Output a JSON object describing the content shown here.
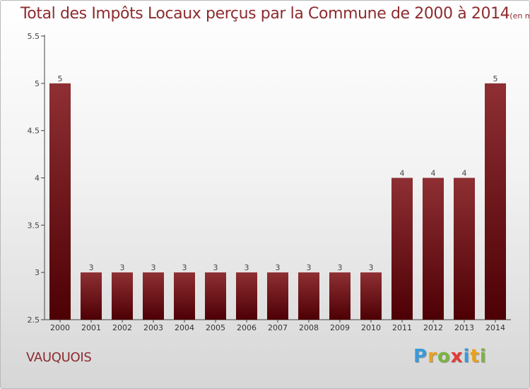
{
  "title": "Total des Impôts Locaux perçus par la Commune de 2000 à 2014",
  "unit": "(en milliers d'€)",
  "commune": "VAUQUOIS",
  "logo": {
    "letters": [
      {
        "char": "P",
        "color": "#3a9ad9"
      },
      {
        "char": "r",
        "color": "#e8a21c"
      },
      {
        "char": "o",
        "color": "#7cb342"
      },
      {
        "char": "x",
        "color": "#e53935"
      },
      {
        "char": "i",
        "color": "#3a9ad9"
      },
      {
        "char": "t",
        "color": "#e8a21c"
      },
      {
        "char": "i",
        "color": "#7cb342"
      }
    ]
  },
  "chart_data": {
    "type": "bar",
    "title": "Total des Impôts Locaux perçus par la Commune de 2000 à 2014",
    "categories": [
      "2000",
      "2001",
      "2002",
      "2003",
      "2004",
      "2005",
      "2006",
      "2007",
      "2008",
      "2009",
      "2010",
      "2011",
      "2012",
      "2013",
      "2014"
    ],
    "values": [
      5,
      3,
      3,
      3,
      3,
      3,
      3,
      3,
      3,
      3,
      3,
      4,
      4,
      4,
      5
    ],
    "data_labels": [
      "5",
      "3",
      "3",
      "3",
      "3",
      "3",
      "3",
      "3",
      "3",
      "3",
      "3",
      "4",
      "4",
      "4",
      "5"
    ],
    "yticks": [
      "2.5",
      "3",
      "3.5",
      "4",
      "4.5",
      "5",
      "5.5"
    ],
    "ylim": [
      2.5,
      5.5
    ],
    "xlabel": "",
    "ylabel": "",
    "grid": false,
    "legend": "none",
    "bar_color": "#7a1a1f"
  }
}
